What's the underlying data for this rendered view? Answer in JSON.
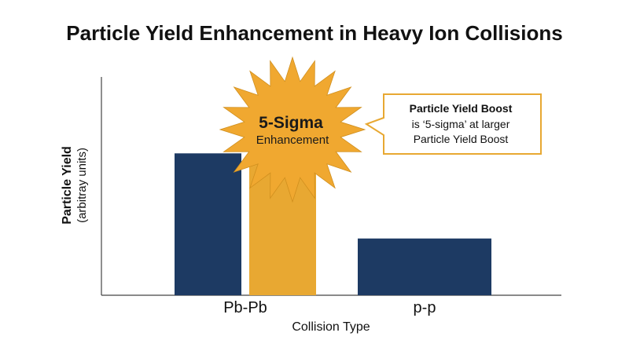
{
  "chart_data": {
    "type": "bar",
    "title": "Particle Yield Enhancement in Heavy Ion Collisions",
    "ylabel": "Particle Yield",
    "ylabel_sub": "(arbitray units)",
    "xlabel": "Collision Type",
    "categories": [
      "Pb-Pb",
      "p-p"
    ],
    "ylim": [
      0,
      100
    ],
    "grid": false,
    "series": [
      {
        "name": "",
        "color": "#1d3a63",
        "values": [
          65,
          26
        ]
      },
      {
        "name": "",
        "color": "#e8a832",
        "values": [
          71,
          null
        ]
      }
    ],
    "annotations": {
      "starburst": {
        "line1": "5-Sigma",
        "line2": "Enhancement",
        "color": "#f0a830"
      },
      "callout": {
        "bold_line": "Particle Yield Boost",
        "line2": "is ‘5-sigma’ at larger",
        "line3": "Particle Yield Boost",
        "border_color": "#e8a832"
      }
    }
  }
}
